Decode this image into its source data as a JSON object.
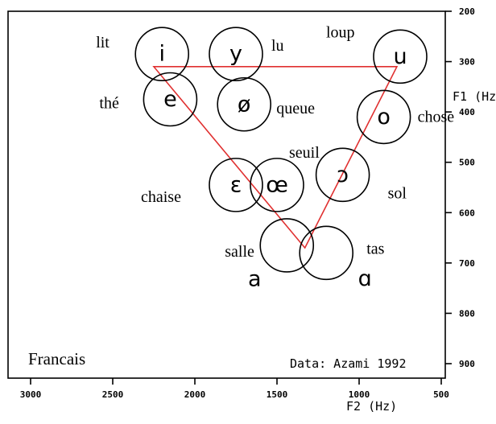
{
  "chart_data": {
    "type": "scatter",
    "title": "Francais",
    "annotation": "Data: Azami 1992",
    "xlabel": "F2 (Hz)",
    "ylabel": "F1 (Hz)",
    "xlim": [
      3000,
      500
    ],
    "ylim": [
      200,
      900
    ],
    "x_ticks": [
      "3000",
      "2500",
      "2000",
      "1500",
      "1000",
      "500"
    ],
    "y_ticks": [
      "200",
      "300",
      "400",
      "500",
      "600",
      "700",
      "800",
      "900"
    ],
    "grid": false,
    "vowels": [
      {
        "symbol": "i",
        "word": "lit",
        "f2": 2200,
        "f1": 285
      },
      {
        "symbol": "y",
        "word": "lu",
        "f2": 1750,
        "f1": 285
      },
      {
        "symbol": "u",
        "word": "loup",
        "f2": 750,
        "f1": 290
      },
      {
        "symbol": "e",
        "word": "thé",
        "f2": 2150,
        "f1": 375
      },
      {
        "symbol": "ø",
        "word": "queue",
        "f2": 1700,
        "f1": 385
      },
      {
        "symbol": "o",
        "word": "chose",
        "f2": 850,
        "f1": 410
      },
      {
        "symbol": "ε",
        "word": "chaise",
        "f2": 1750,
        "f1": 545
      },
      {
        "symbol": "œ",
        "word": "seuil",
        "f2": 1500,
        "f1": 545
      },
      {
        "symbol": "ɔ",
        "word": "sol",
        "f2": 1100,
        "f1": 525
      },
      {
        "symbol": "a",
        "word": "salle",
        "f2": 1440,
        "f1": 665
      },
      {
        "symbol": "ɑ",
        "word": "tas",
        "f2": 1200,
        "f1": 680
      }
    ],
    "triangle": [
      {
        "f2": 2250,
        "f1": 310
      },
      {
        "f2": 770,
        "f1": 310
      },
      {
        "f2": 1330,
        "f1": 670
      }
    ],
    "colors": {
      "triangle": "#e03030",
      "marks": "#000000"
    }
  }
}
